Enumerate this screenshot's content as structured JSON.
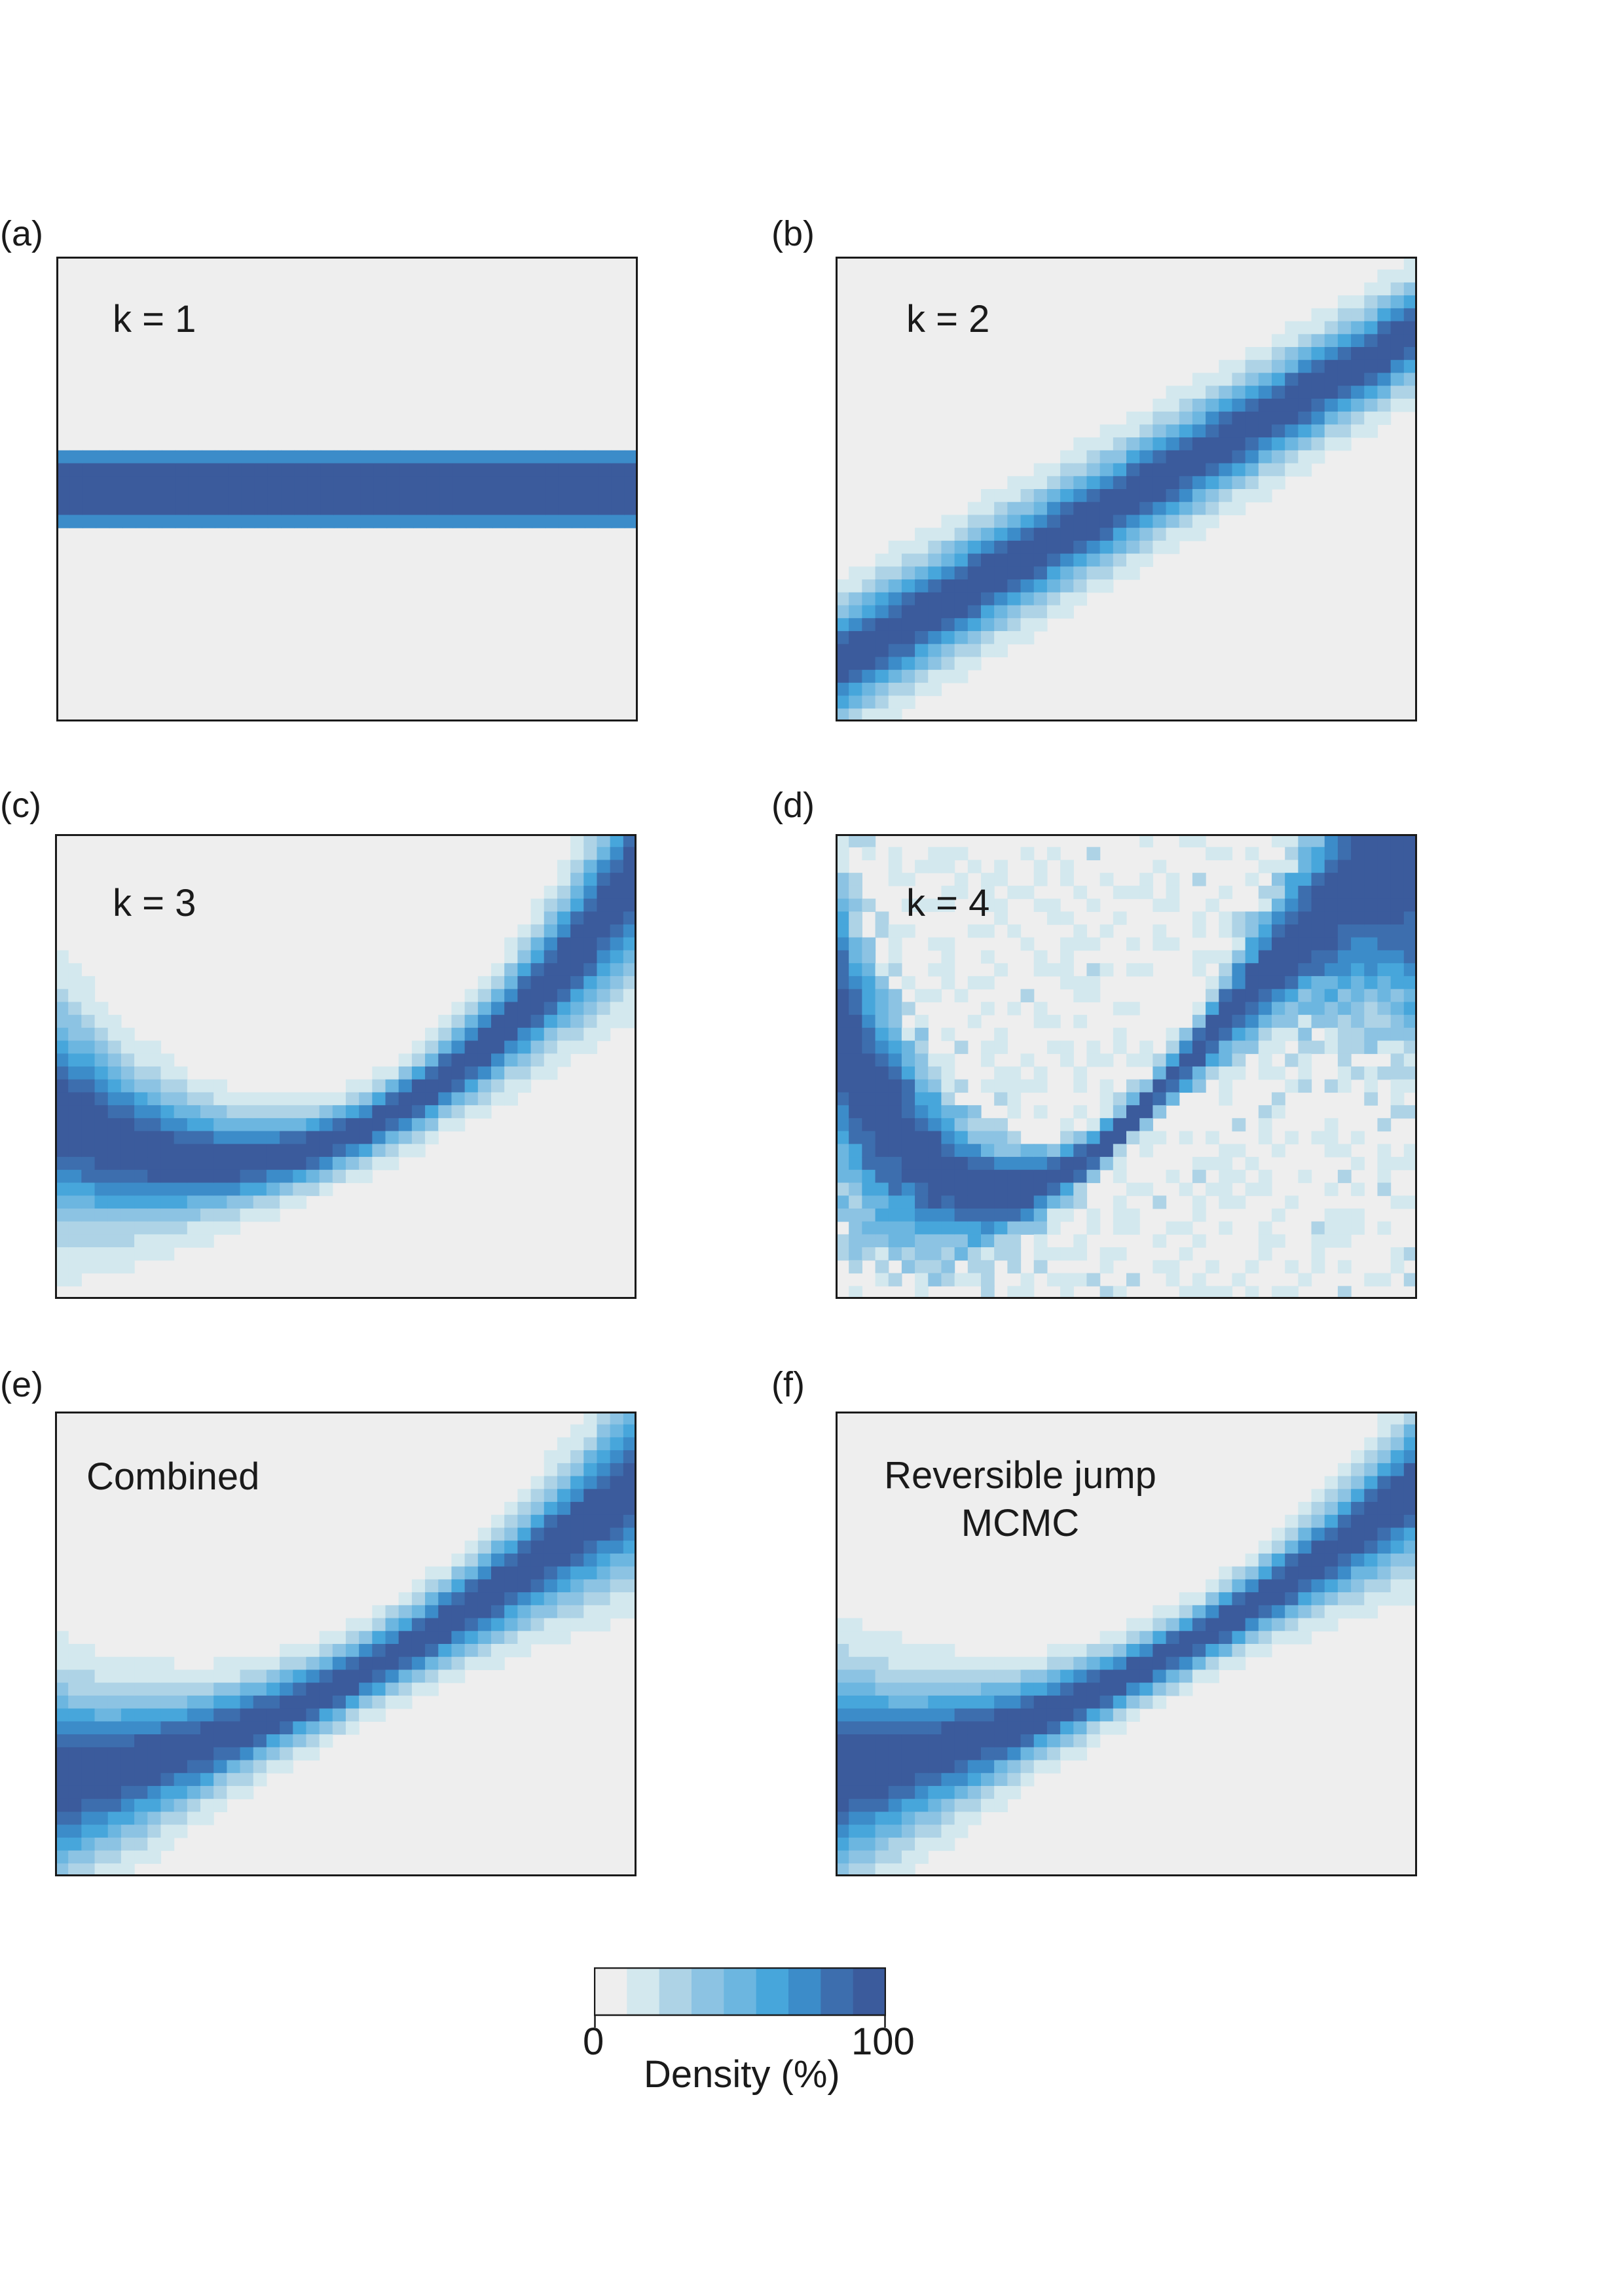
{
  "chart_data": [
    {
      "type": "heatmap",
      "panel": "(a)",
      "annotation": [
        "k = 1"
      ],
      "density_band": {
        "shape": "constant",
        "center": [
          0.5,
          0.5
        ],
        "half_width": 0.07
      },
      "scale": {
        "min": 0,
        "max": 100
      }
    },
    {
      "type": "heatmap",
      "panel": "(b)",
      "annotation": [
        "k = 2"
      ],
      "density_band": {
        "shape": "linear",
        "center": [
          0.12,
          0.84
        ],
        "half_width": [
          0.14,
          0.12
        ]
      },
      "scale": {
        "min": 0,
        "max": 100
      }
    },
    {
      "type": "heatmap",
      "panel": "(c)",
      "annotation": [
        "k = 3"
      ],
      "density_band": {
        "shape": "quadratic",
        "center": [
          0.4,
          0.35,
          0.92
        ],
        "half_width": [
          0.28,
          0.08,
          0.24
        ]
      },
      "scale": {
        "min": 0,
        "max": 100
      }
    },
    {
      "type": "heatmap",
      "panel": "(d)",
      "annotation": [
        "k = 4"
      ],
      "density_band": {
        "shape": "cubic",
        "center": [
          0.6,
          0.24,
          0.6,
          0.95
        ],
        "half_width": [
          0.42,
          0.1,
          0.1,
          0.48
        ]
      },
      "scale": {
        "min": 0,
        "max": 100
      }
    },
    {
      "type": "heatmap",
      "panel": "(e)",
      "annotation": [
        "Combined"
      ],
      "density_band": {
        "shape": "quadratic",
        "center": [
          0.2,
          0.42,
          0.85
        ],
        "half_width": [
          0.24,
          0.09,
          0.22
        ]
      },
      "scale": {
        "min": 0,
        "max": 100
      }
    },
    {
      "type": "heatmap",
      "panel": "(f)",
      "annotation": [
        "Reversible jump",
        "MCMC"
      ],
      "density_band": {
        "shape": "quadratic",
        "center": [
          0.22,
          0.43,
          0.84
        ],
        "half_width": [
          0.26,
          0.08,
          0.18
        ]
      },
      "scale": {
        "min": 0,
        "max": 100
      }
    }
  ],
  "colorbar": {
    "title": "Density (%)",
    "min_label": "0",
    "max_label": "100",
    "colors": [
      "#eeeeee",
      "#d3e8ee",
      "#aed3e6",
      "#8cc3e3",
      "#6cb6e0",
      "#47a6db",
      "#3c8cc9",
      "#3d6eae",
      "#3b5b9c"
    ]
  }
}
